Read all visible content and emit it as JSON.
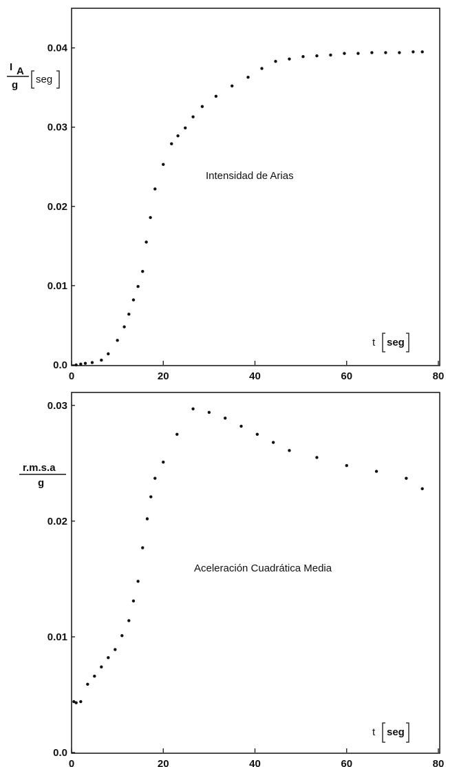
{
  "figure": {
    "colors": {
      "ink": "#111111",
      "background": "#ffffff"
    }
  },
  "chart_data": [
    {
      "type": "scatter",
      "title": "",
      "annotation": "Intensidad de Arias",
      "ylabel_num": "I",
      "ylabel_sub": "A",
      "ylabel_den": "g",
      "ylabel_unit": "seg",
      "xlabel_var": "t",
      "xlabel_unit": "seg",
      "xlim": [
        0,
        80
      ],
      "ylim": [
        0,
        0.045
      ],
      "xticks": [
        0,
        20,
        40,
        60,
        80
      ],
      "xtick_labels": [
        "0",
        "20",
        "40",
        "60",
        "80"
      ],
      "yticks": [
        0,
        0.01,
        0.02,
        0.03,
        0.04
      ],
      "ytick_labels": [
        "0.0",
        "0.01",
        "0.02",
        "0.03",
        "0.04"
      ],
      "grid": false,
      "series": [
        {
          "x": [
            1,
            2,
            3,
            4.5,
            6.5,
            8,
            10,
            11.5,
            12.5,
            13.5,
            14.5,
            15.5,
            16.3,
            17.2,
            18.2,
            20,
            21.8,
            23.2,
            24.8,
            26.5,
            28.5,
            31.5,
            35,
            38.5,
            41.5,
            44.5,
            47.5,
            50.5,
            53.5,
            56.5,
            59.5,
            62.5,
            65.5,
            68.5,
            71.5,
            74.5,
            76.5
          ],
          "y": [
            0.0,
            0.0001,
            0.0002,
            0.0003,
            0.0006,
            0.0014,
            0.0031,
            0.0048,
            0.0064,
            0.0082,
            0.0099,
            0.0118,
            0.0155,
            0.0186,
            0.0222,
            0.0253,
            0.0279,
            0.0289,
            0.0299,
            0.0313,
            0.0326,
            0.0339,
            0.0352,
            0.0363,
            0.0374,
            0.0383,
            0.0386,
            0.0389,
            0.039,
            0.0391,
            0.0393,
            0.0393,
            0.0394,
            0.0394,
            0.0394,
            0.0395,
            0.0395
          ]
        }
      ]
    },
    {
      "type": "scatter",
      "title": "",
      "annotation": "Aceleración Cuadrática Media",
      "ylabel_num": "r.m.s.a",
      "ylabel_den": "g",
      "xlabel_var": "t",
      "xlabel_unit": "seg",
      "xlim": [
        0,
        80
      ],
      "ylim": [
        0,
        0.031
      ],
      "xticks": [
        0,
        20,
        40,
        60,
        80
      ],
      "xtick_labels": [
        "0",
        "20",
        "40",
        "60",
        "80"
      ],
      "yticks": [
        0,
        0.01,
        0.02,
        0.03
      ],
      "ytick_labels": [
        "0.0",
        "0.01",
        "0.02",
        "0.03"
      ],
      "grid": false,
      "series": [
        {
          "x": [
            0.5,
            1,
            2,
            3.5,
            5,
            6.5,
            8,
            9.5,
            11,
            12.5,
            13.5,
            14.5,
            15.5,
            16.5,
            17.3,
            18.2,
            20,
            23,
            26.5,
            30,
            33.5,
            37,
            40.5,
            44,
            47.5,
            53.5,
            60,
            66.5,
            73,
            76.5
          ],
          "y": [
            0.0044,
            0.0043,
            0.0044,
            0.0059,
            0.0066,
            0.0074,
            0.0082,
            0.0089,
            0.0101,
            0.0114,
            0.0131,
            0.0148,
            0.0177,
            0.0202,
            0.0221,
            0.0237,
            0.0251,
            0.0275,
            0.0297,
            0.0294,
            0.0289,
            0.0282,
            0.0275,
            0.0268,
            0.0261,
            0.0255,
            0.0248,
            0.0243,
            0.0237,
            0.0228
          ]
        }
      ]
    }
  ]
}
